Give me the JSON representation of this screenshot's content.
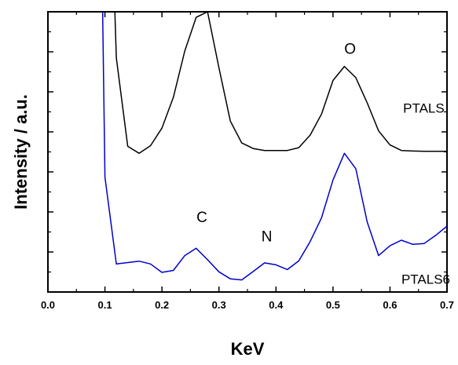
{
  "chart_data": {
    "type": "line",
    "title": "",
    "xlabel": "KeV",
    "ylabel": "Intensity / a.u.",
    "xlim": [
      0.0,
      0.7
    ],
    "ylim": [
      0,
      100
    ],
    "y_tick_labels_shown": false,
    "grid": false,
    "legend": "none",
    "x_ticks": [
      "0.0",
      "0.1",
      "0.2",
      "0.3",
      "0.4",
      "0.5",
      "0.6",
      "0.7"
    ],
    "series": [
      {
        "name": "PTALS",
        "color": "#000000",
        "points": [
          [
            0.115,
            115
          ],
          [
            0.12,
            83.5
          ],
          [
            0.14,
            52
          ],
          [
            0.16,
            49.5
          ],
          [
            0.18,
            52.2
          ],
          [
            0.2,
            58.5
          ],
          [
            0.22,
            69.5
          ],
          [
            0.24,
            86
          ],
          [
            0.26,
            98
          ],
          [
            0.28,
            100
          ],
          [
            0.3,
            80
          ],
          [
            0.32,
            61
          ],
          [
            0.34,
            53.2
          ],
          [
            0.36,
            51.2
          ],
          [
            0.38,
            50.5
          ],
          [
            0.4,
            50.5
          ],
          [
            0.42,
            50.5
          ],
          [
            0.44,
            51.5
          ],
          [
            0.46,
            56
          ],
          [
            0.48,
            63.5
          ],
          [
            0.5,
            75.5
          ],
          [
            0.52,
            80.5
          ],
          [
            0.54,
            76.5
          ],
          [
            0.56,
            67.5
          ],
          [
            0.58,
            57.5
          ],
          [
            0.6,
            52.5
          ],
          [
            0.62,
            50.5
          ],
          [
            0.64,
            50.3
          ],
          [
            0.66,
            50.2
          ],
          [
            0.68,
            50.2
          ],
          [
            0.7,
            50.2
          ]
        ]
      },
      {
        "name": "PTALS6",
        "color": "#0000cc",
        "points": [
          [
            0.095,
            115
          ],
          [
            0.1,
            41
          ],
          [
            0.12,
            10
          ],
          [
            0.14,
            10.5
          ],
          [
            0.16,
            11
          ],
          [
            0.18,
            10
          ],
          [
            0.2,
            7
          ],
          [
            0.22,
            7.7
          ],
          [
            0.24,
            13
          ],
          [
            0.26,
            15.6
          ],
          [
            0.28,
            11.5
          ],
          [
            0.3,
            7.2
          ],
          [
            0.32,
            4.7
          ],
          [
            0.34,
            4.3
          ],
          [
            0.36,
            7.3
          ],
          [
            0.38,
            10.4
          ],
          [
            0.4,
            9.7
          ],
          [
            0.42,
            8
          ],
          [
            0.44,
            11.1
          ],
          [
            0.46,
            18
          ],
          [
            0.48,
            26.5
          ],
          [
            0.5,
            40
          ],
          [
            0.52,
            49.5
          ],
          [
            0.54,
            44
          ],
          [
            0.56,
            25
          ],
          [
            0.58,
            13
          ],
          [
            0.6,
            16.5
          ],
          [
            0.62,
            18.5
          ],
          [
            0.64,
            17
          ],
          [
            0.66,
            17.3
          ],
          [
            0.68,
            20.2
          ],
          [
            0.7,
            23.5
          ]
        ]
      }
    ],
    "annotations": [
      {
        "text": "O",
        "x": 0.53,
        "y": 85
      },
      {
        "text": "PTALS",
        "x": 0.623,
        "y": 64
      },
      {
        "text": "C",
        "x": 0.27,
        "y": 25
      },
      {
        "text": "N",
        "x": 0.384,
        "y": 18
      },
      {
        "text": "PTALS6",
        "x": 0.62,
        "y": 3
      }
    ]
  }
}
